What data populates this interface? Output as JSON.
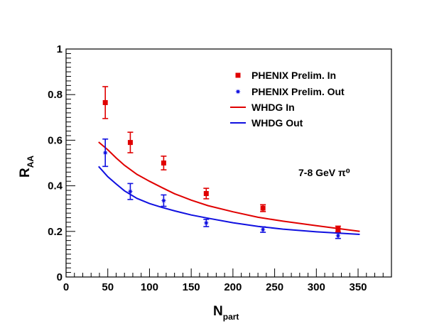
{
  "chart_data": {
    "type": "scatter",
    "xlabel": "N",
    "xlabel_sub": "part",
    "ylabel": "R",
    "ylabel_sub": "AA",
    "xlim": [
      0,
      390
    ],
    "ylim": [
      0,
      1
    ],
    "x_ticks": [
      "0",
      "50",
      "100",
      "150",
      "200",
      "250",
      "300",
      "350"
    ],
    "y_ticks": [
      "0",
      "0.2",
      "0.4",
      "0.6",
      "0.8",
      "1"
    ],
    "annotation": "7-8 GeV π⁰",
    "legend_position": "top-right",
    "series": [
      {
        "name": "PHENIX Prelim. In",
        "kind": "points",
        "marker": "square",
        "color": "#e00000",
        "x": [
          47,
          77,
          117,
          168,
          236,
          326
        ],
        "y": [
          0.765,
          0.59,
          0.5,
          0.366,
          0.302,
          0.21
        ],
        "err": [
          0.07,
          0.045,
          0.03,
          0.023,
          0.015,
          0.013
        ]
      },
      {
        "name": "PHENIX Prelim. Out",
        "kind": "points",
        "marker": "star",
        "color": "#1010e0",
        "x": [
          47,
          77,
          117,
          168,
          236,
          326
        ],
        "y": [
          0.545,
          0.375,
          0.335,
          0.237,
          0.208,
          0.181
        ],
        "err": [
          0.06,
          0.035,
          0.025,
          0.016,
          0.012,
          0.012
        ]
      },
      {
        "name": "WHDG In",
        "kind": "line",
        "color": "#e00000",
        "x": [
          39,
          50,
          60,
          70,
          85,
          100,
          115,
          130,
          150,
          170,
          200,
          230,
          260,
          300,
          352
        ],
        "y": [
          0.592,
          0.558,
          0.522,
          0.49,
          0.45,
          0.42,
          0.392,
          0.365,
          0.337,
          0.313,
          0.286,
          0.262,
          0.245,
          0.225,
          0.2
        ]
      },
      {
        "name": "WHDG Out",
        "kind": "line",
        "color": "#1010e0",
        "x": [
          39,
          50,
          60,
          70,
          85,
          100,
          115,
          130,
          150,
          170,
          200,
          230,
          260,
          300,
          352
        ],
        "y": [
          0.485,
          0.44,
          0.408,
          0.378,
          0.345,
          0.322,
          0.305,
          0.29,
          0.272,
          0.258,
          0.238,
          0.222,
          0.21,
          0.198,
          0.187
        ]
      }
    ]
  }
}
